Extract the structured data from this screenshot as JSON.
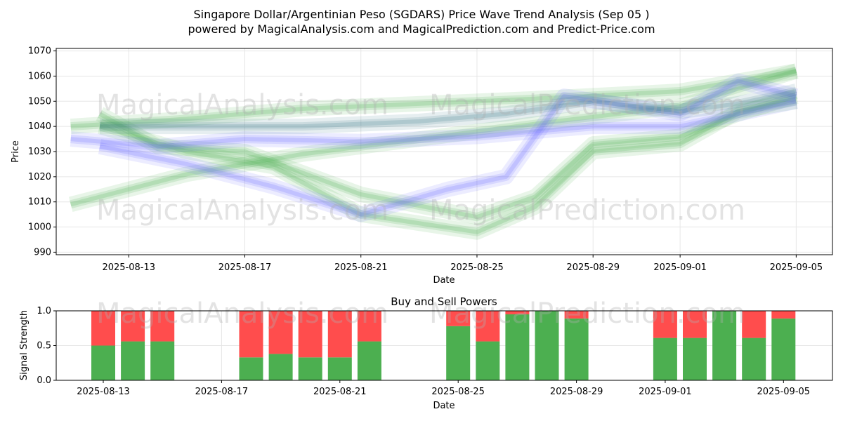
{
  "title_line1": "Singapore Dollar/Argentinian Peso (SGDARS) Price Wave Trend Analysis (Sep 05 )",
  "title_line2": "powered by MagicalAnalysis.com and MagicalPrediction.com and Predict-Price.com",
  "watermarks": [
    "MagicalAnalysis.com",
    "MagicalPrediction.com"
  ],
  "colors": {
    "green": "#4caf50",
    "red": "#ff4d4d",
    "blue": "#6b6bff",
    "teal": "#3d7f8a"
  },
  "chart_data": [
    {
      "type": "area",
      "xlabel": "Date",
      "ylabel": "Price",
      "ylim": [
        989,
        1071
      ],
      "xlim": [
        "2025-08-10 12:00",
        "2025-09-06 06:00"
      ],
      "yticks": [
        990,
        1000,
        1010,
        1020,
        1030,
        1040,
        1050,
        1060,
        1070
      ],
      "xticks": [
        "2025-08-13",
        "2025-08-17",
        "2025-08-21",
        "2025-08-25",
        "2025-08-29",
        "2025-09-01",
        "2025-09-05"
      ],
      "grid": true,
      "series": [
        {
          "color": "green",
          "points": [
            [
              "2025-08-11",
              1040
            ],
            [
              "2025-08-15",
              1043
            ],
            [
              "2025-08-19",
              1047
            ],
            [
              "2025-08-23",
              1049
            ],
            [
              "2025-08-27",
              1051
            ],
            [
              "2025-09-01",
              1054
            ],
            [
              "2025-09-05",
              1062
            ]
          ]
        },
        {
          "color": "green",
          "points": [
            [
              "2025-08-11",
              1009
            ],
            [
              "2025-08-15",
              1021
            ],
            [
              "2025-08-19",
              1029
            ],
            [
              "2025-08-23",
              1035
            ],
            [
              "2025-08-27",
              1041
            ],
            [
              "2025-09-01",
              1048
            ],
            [
              "2025-09-05",
              1062
            ]
          ]
        },
        {
          "color": "green",
          "points": [
            [
              "2025-08-12",
              1045
            ],
            [
              "2025-08-14",
              1032
            ],
            [
              "2025-08-17",
              1030
            ],
            [
              "2025-08-21",
              1013
            ],
            [
              "2025-08-25",
              1004
            ],
            [
              "2025-08-27",
              1012
            ],
            [
              "2025-08-29",
              1033
            ],
            [
              "2025-09-01",
              1036
            ],
            [
              "2025-09-03",
              1045
            ],
            [
              "2025-09-05",
              1052
            ]
          ]
        },
        {
          "color": "green",
          "points": [
            [
              "2025-08-12",
              1040
            ],
            [
              "2025-08-15",
              1030
            ],
            [
              "2025-08-18",
              1024
            ],
            [
              "2025-08-21",
              1005
            ],
            [
              "2025-08-25",
              998
            ],
            [
              "2025-08-27",
              1008
            ],
            [
              "2025-08-29",
              1030
            ],
            [
              "2025-09-01",
              1033
            ],
            [
              "2025-09-03",
              1046
            ],
            [
              "2025-09-05",
              1050
            ]
          ]
        },
        {
          "color": "blue",
          "points": [
            [
              "2025-08-11",
              1035
            ],
            [
              "2025-08-14",
              1032
            ],
            [
              "2025-08-17",
              1035
            ],
            [
              "2025-08-21",
              1034
            ],
            [
              "2025-08-25",
              1036
            ],
            [
              "2025-08-29",
              1040
            ],
            [
              "2025-09-01",
              1040
            ],
            [
              "2025-09-05",
              1050
            ]
          ]
        },
        {
          "color": "blue",
          "points": [
            [
              "2025-08-12",
              1032
            ],
            [
              "2025-08-15",
              1025
            ],
            [
              "2025-08-18",
              1016
            ],
            [
              "2025-08-21",
              1005
            ],
            [
              "2025-08-24",
              1015
            ],
            [
              "2025-08-26",
              1020
            ],
            [
              "2025-08-28",
              1052
            ],
            [
              "2025-09-01",
              1045
            ],
            [
              "2025-09-03",
              1058
            ],
            [
              "2025-09-05",
              1052
            ]
          ]
        },
        {
          "color": "teal",
          "points": [
            [
              "2025-08-12",
              1040
            ],
            [
              "2025-08-15",
              1040
            ],
            [
              "2025-08-19",
              1040
            ],
            [
              "2025-08-23",
              1042
            ],
            [
              "2025-08-26",
              1045
            ],
            [
              "2025-08-29",
              1050
            ],
            [
              "2025-09-01",
              1046
            ],
            [
              "2025-09-03",
              1049
            ],
            [
              "2025-09-05",
              1054
            ]
          ]
        }
      ]
    },
    {
      "type": "bar",
      "title": "Buy and Sell Powers",
      "xlabel": "Date",
      "ylabel": "Signal Strength",
      "ylim": [
        0,
        1
      ],
      "yticks": [
        "0.0",
        "0.5",
        "1.0"
      ],
      "xticks": [
        "2025-08-13",
        "2025-08-17",
        "2025-08-21",
        "2025-08-25",
        "2025-08-29",
        "2025-09-01",
        "2025-09-05"
      ],
      "grid": true,
      "categories": [
        "2025-08-13",
        "2025-08-14",
        "2025-08-15",
        "2025-08-18",
        "2025-08-19",
        "2025-08-20",
        "2025-08-21",
        "2025-08-22",
        "2025-08-25",
        "2025-08-26",
        "2025-08-27",
        "2025-08-28",
        "2025-08-29",
        "2025-09-01",
        "2025-09-02",
        "2025-09-03",
        "2025-09-04",
        "2025-09-05"
      ],
      "series": [
        {
          "name": "buy",
          "color": "green",
          "values": [
            0.5,
            0.56,
            0.56,
            0.33,
            0.38,
            0.33,
            0.33,
            0.56,
            0.78,
            0.56,
            0.95,
            1.0,
            0.89,
            0.61,
            0.61,
            1.0,
            0.61,
            0.89
          ]
        },
        {
          "name": "sell",
          "color": "red",
          "values": [
            0.5,
            0.44,
            0.44,
            0.67,
            0.62,
            0.67,
            0.67,
            0.44,
            0.22,
            0.44,
            0.05,
            0.0,
            0.11,
            0.39,
            0.39,
            0.0,
            0.39,
            0.11
          ]
        }
      ]
    }
  ]
}
